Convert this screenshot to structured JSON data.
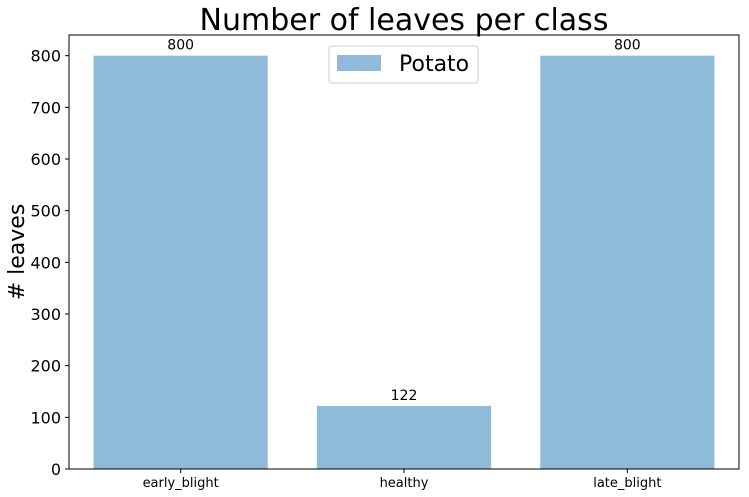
{
  "chart_data": {
    "type": "bar",
    "title": "Number of leaves per class",
    "xlabel": "",
    "ylabel": "# leaves",
    "categories": [
      "early_blight",
      "healthy",
      "late_blight"
    ],
    "series": [
      {
        "name": "Potato",
        "values": [
          800,
          122,
          800
        ],
        "color": "#8fbad9"
      }
    ],
    "data_labels": [
      "800",
      "122",
      "800"
    ],
    "ylim": [
      0,
      840
    ],
    "yticks": [
      0,
      100,
      200,
      300,
      400,
      500,
      600,
      700,
      800
    ],
    "grid": false,
    "legend_position": "top-center"
  }
}
